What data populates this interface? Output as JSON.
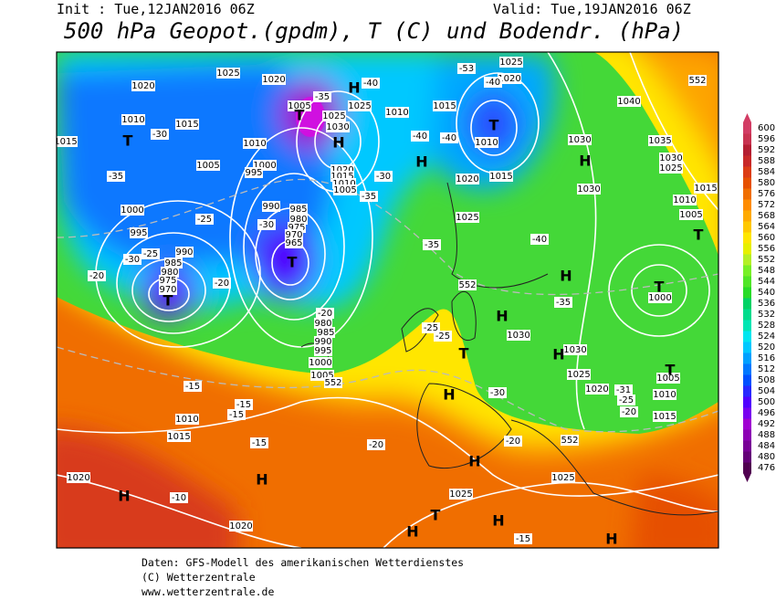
{
  "header": {
    "init": "Init : Tue,12JAN2016 06Z",
    "valid": "Valid: Tue,19JAN2016 06Z",
    "title": "500 hPa Geopot.(gpdm), T (C) und Bodendr. (hPa)"
  },
  "colorbar": {
    "ticks": [
      476,
      480,
      484,
      488,
      492,
      496,
      500,
      504,
      508,
      512,
      516,
      520,
      524,
      528,
      532,
      536,
      540,
      544,
      548,
      552,
      556,
      560,
      564,
      568,
      572,
      576,
      580,
      584,
      588,
      592,
      596,
      600
    ],
    "colors": [
      "#500050",
      "#640078",
      "#780096",
      "#8c00b4",
      "#a000d2",
      "#7800f0",
      "#5000ff",
      "#2828ff",
      "#0050ff",
      "#0078ff",
      "#00a0ff",
      "#00c8ff",
      "#00e6f0",
      "#00e6b4",
      "#00dc8c",
      "#00d264",
      "#28dc28",
      "#50e628",
      "#78f028",
      "#b4f028",
      "#e6f000",
      "#ffe600",
      "#ffc800",
      "#ffaa00",
      "#ff8c00",
      "#f06e00",
      "#e65000",
      "#dc3c14",
      "#c82828",
      "#b41e32",
      "#c83250",
      "#d23c64"
    ]
  },
  "map": {
    "labels": [
      "1025",
      "1020",
      "1010",
      "1015",
      "T",
      "1015",
      "1005",
      "1000",
      "995",
      "1000",
      "995",
      "990",
      "985",
      "980",
      "975",
      "970",
      "T",
      "990",
      "985",
      "980",
      "975",
      "970",
      "965",
      "T",
      "980",
      "985",
      "990",
      "995",
      "1000",
      "1005",
      "1010",
      "1015",
      "1020",
      "1020",
      "1025",
      "1025",
      "1030",
      "1030",
      "1025",
      "1020",
      "1010",
      "1015",
      "1005",
      "1000",
      "1030",
      "1030",
      "1040",
      "1035",
      "1030",
      "1025",
      "1010",
      "1005",
      "1015",
      "1015",
      "1020",
      "1025",
      "1010",
      "1015",
      "1020",
      "1025",
      "1005",
      "1025",
      "1030",
      "1020",
      "1015",
      "1010",
      "1005",
      "1025",
      "1010",
      "1010",
      "1020",
      "H",
      "H",
      "H",
      "H",
      "H",
      "H",
      "H",
      "H",
      "H",
      "H",
      "H",
      "H",
      "H",
      "H",
      "T",
      "T",
      "T",
      "T",
      "T",
      "T",
      "T",
      "-30",
      "-35",
      "-25",
      "-30",
      "-25",
      "-20",
      "-20",
      "-30",
      "-35",
      "-40",
      "-40",
      "-40",
      "-40",
      "-35",
      "-30",
      "-35",
      "-40",
      "-35",
      "-30",
      "-31",
      "-25",
      "-20",
      "-25",
      "-25",
      "-20",
      "-15",
      "-15",
      "-15",
      "-15",
      "-20",
      "-20",
      "-10",
      "-15",
      "-53",
      "552",
      "552",
      "552",
      "552"
    ]
  },
  "footer": {
    "lines": [
      "Daten: GFS-Modell des amerikanischen Wetterdienstes",
      "(C) Wetterzentrale",
      "www.wetterzentrale.de"
    ]
  }
}
